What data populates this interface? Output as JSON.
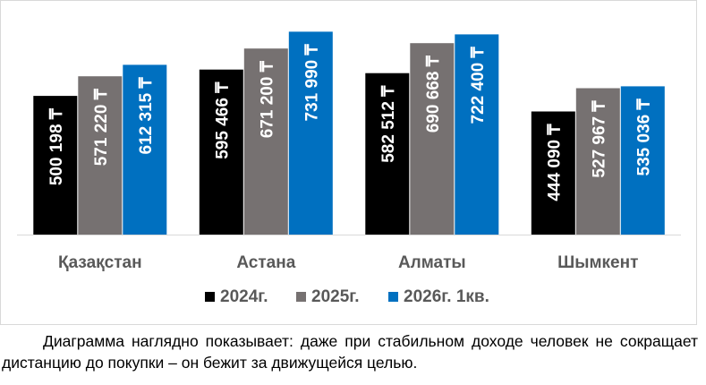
{
  "chart_data": {
    "type": "bar",
    "title": "",
    "xlabel": "",
    "ylabel": "",
    "categories": [
      "Қазақстан",
      "Астана",
      "Алматы",
      "Шымкент"
    ],
    "series": [
      {
        "name": "2024г.",
        "color": "#000000",
        "values": [
          500198,
          595466,
          582512,
          444090
        ],
        "labels": [
          "500 198 ₸",
          "595 466 ₸",
          "582 512 ₸",
          "444 090 ₸"
        ]
      },
      {
        "name": "2025г.",
        "color": "#767171",
        "values": [
          571220,
          671200,
          690668,
          527967
        ],
        "labels": [
          "571 220 ₸",
          "671 200 ₸",
          "690 668 ₸",
          "527 967 ₸"
        ]
      },
      {
        "name": "2026г. 1кв.",
        "color": "#0070C0",
        "values": [
          612315,
          731990,
          722400,
          535036
        ],
        "labels": [
          "612 315 ₸",
          "731 990 ₸",
          "722 400 ₸",
          "535 036 ₸"
        ]
      }
    ],
    "ylim": [
      0,
      730000
    ],
    "grid": false,
    "legend_position": "bottom",
    "data_labels": "inside-rotated",
    "axis_text_color": "#595959",
    "baseline_color": "#d9d9d9",
    "label_color": "#ffffff"
  },
  "caption": "Диаграмма наглядно показывает: даже при стабильном доходе человек не сокращает дистанцию до покупки – он бежит за движущейся целью."
}
